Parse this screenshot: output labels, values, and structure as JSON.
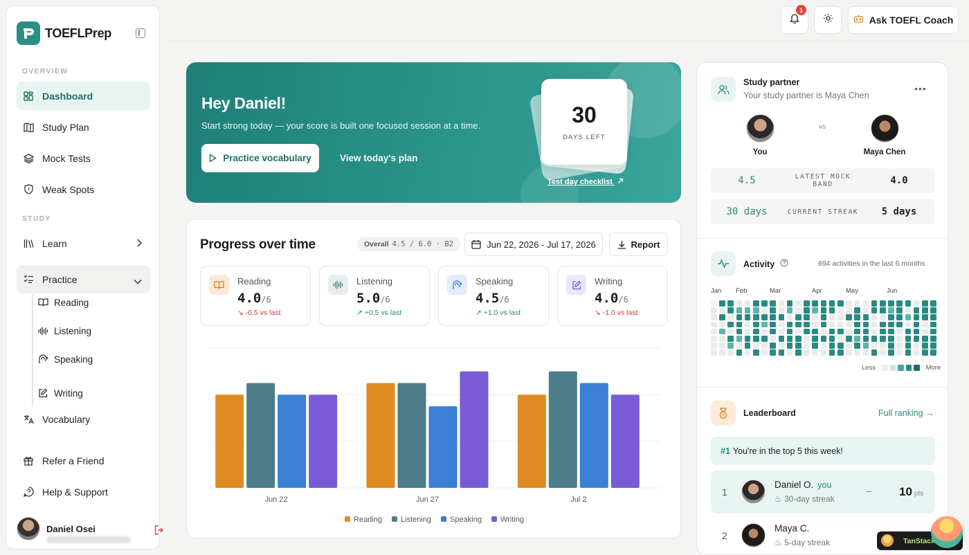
{
  "app": {
    "name": "TOEFLPrep"
  },
  "sidebar": {
    "overview_label": "OVERVIEW",
    "study_label": "STUDY",
    "items": {
      "dashboard": "Dashboard",
      "study_plan": "Study Plan",
      "mock_tests": "Mock Tests",
      "weak_spots": "Weak Spots",
      "learn": "Learn",
      "practice": "Practice",
      "vocabulary": "Vocabulary",
      "refer": "Refer a Friend",
      "help": "Help & Support"
    },
    "practice_sub": {
      "reading": "Reading",
      "listening": "Listening",
      "speaking": "Speaking",
      "writing": "Writing"
    },
    "user": {
      "name": "Daniel Osei"
    }
  },
  "topbar": {
    "notif_count": "1",
    "coach_label": "Ask TOEFL Coach"
  },
  "hero": {
    "greeting": "Hey Daniel!",
    "subtitle": "Start strong today — your score is built one focused session at a time.",
    "primary_cta": "Practice vocabulary",
    "secondary_cta": "View today's plan",
    "days_left_number": "30",
    "days_left_label": "DAYS LEFT",
    "checklist_link": "Test day checklist"
  },
  "progress": {
    "title": "Progress over time",
    "overall_label": "Overall",
    "overall_value": "4.5 / 6.0 · B2",
    "date_range": "Jun 22, 2026 - Jul 17, 2026",
    "report_label": "Report",
    "skills": [
      {
        "name": "Reading",
        "score": "4.0",
        "max": "/6",
        "delta": "-0.5 vs last"
      },
      {
        "name": "Listening",
        "score": "5.0",
        "max": "/6",
        "delta": "+0.5 vs last"
      },
      {
        "name": "Speaking",
        "score": "4.5",
        "max": "/6",
        "delta": "+1.0 vs last"
      },
      {
        "name": "Writing",
        "score": "4.0",
        "max": "/6",
        "delta": "-1.0 vs last"
      }
    ]
  },
  "chart_data": {
    "type": "bar",
    "categories": [
      "Jun 22",
      "Jun 27",
      "Jul 2"
    ],
    "series": [
      {
        "name": "Reading",
        "color": "#e08a22",
        "values": [
          4.0,
          4.5,
          4.0
        ]
      },
      {
        "name": "Listening",
        "color": "#4d7d8b",
        "values": [
          4.5,
          4.5,
          5.0
        ]
      },
      {
        "name": "Speaking",
        "color": "#3a80d4",
        "values": [
          4.0,
          3.5,
          4.5
        ]
      },
      {
        "name": "Writing",
        "color": "#7a5bd6",
        "values": [
          4.0,
          5.0,
          4.0
        ]
      }
    ],
    "ylim": [
      0,
      6
    ],
    "grid": true,
    "legend": "bottom"
  },
  "partner": {
    "title": "Study partner",
    "subtitle": "Your study partner is Maya Chen",
    "you_label": "You",
    "vs_label": "vs",
    "partner_name": "Maya Chen",
    "rows": [
      {
        "left": "4.5",
        "label": "LATEST MOCK BAND",
        "right": "4.0"
      },
      {
        "left": "30 days",
        "label": "CURRENT STREAK",
        "right": "5 days"
      }
    ]
  },
  "activity": {
    "title": "Activity",
    "meta": "694 activities in the last 6 months",
    "months": [
      "Jan",
      "Feb",
      "Mar",
      "Apr",
      "May",
      "Jun"
    ],
    "less_label": "Less",
    "more_label": "More",
    "levels": [
      [
        0,
        1,
        1,
        0,
        0,
        1,
        1,
        1,
        0,
        1,
        0,
        1,
        1,
        1,
        1,
        1,
        0,
        0,
        0,
        1,
        1,
        1,
        1,
        1,
        0,
        1,
        1
      ],
      [
        0,
        0,
        1,
        2,
        2,
        2,
        0,
        1,
        0,
        2,
        0,
        1,
        2,
        1,
        1,
        0,
        0,
        1,
        0,
        1,
        1,
        2,
        1,
        0,
        1,
        1,
        1
      ],
      [
        0,
        1,
        0,
        1,
        1,
        1,
        1,
        1,
        1,
        0,
        1,
        1,
        0,
        1,
        0,
        0,
        1,
        1,
        1,
        0,
        0,
        1,
        1,
        2,
        1,
        1,
        1
      ],
      [
        0,
        0,
        1,
        1,
        0,
        1,
        2,
        1,
        0,
        1,
        1,
        1,
        0,
        1,
        0,
        0,
        0,
        1,
        1,
        0,
        1,
        1,
        1,
        0,
        1,
        0,
        1
      ],
      [
        0,
        2,
        0,
        1,
        0,
        1,
        0,
        1,
        0,
        1,
        0,
        1,
        1,
        0,
        1,
        1,
        0,
        1,
        1,
        0,
        1,
        1,
        0,
        1,
        1,
        0,
        1
      ],
      [
        0,
        0,
        1,
        2,
        1,
        1,
        1,
        0,
        1,
        1,
        1,
        0,
        1,
        1,
        1,
        0,
        1,
        2,
        1,
        1,
        1,
        1,
        0,
        1,
        1,
        1,
        1
      ],
      [
        0,
        0,
        2,
        0,
        1,
        0,
        0,
        1,
        0,
        1,
        1,
        0,
        1,
        0,
        1,
        1,
        0,
        1,
        2,
        0,
        0,
        1,
        0,
        1,
        0,
        1,
        1
      ],
      [
        0,
        0,
        0,
        1,
        0,
        1,
        0,
        1,
        1,
        0,
        1,
        0,
        0,
        0,
        1,
        1,
        0,
        0,
        0,
        1,
        0,
        1,
        0,
        1,
        0,
        1,
        1
      ]
    ]
  },
  "leaderboard": {
    "title": "Leaderboard",
    "link": "Full ranking →",
    "banner_rank": "#1",
    "banner_text": "You're in the top 5 this week!",
    "rows": [
      {
        "rank": "1",
        "name": "Daniel O.",
        "tag": "you",
        "streak": "30-day streak",
        "change": "–",
        "points": "10",
        "unit": "pts"
      },
      {
        "rank": "2",
        "name": "Maya C.",
        "tag": "",
        "streak": "5-day streak",
        "change": "",
        "points": "",
        "unit": ""
      }
    ]
  },
  "devtools": {
    "label": "TanStack"
  }
}
